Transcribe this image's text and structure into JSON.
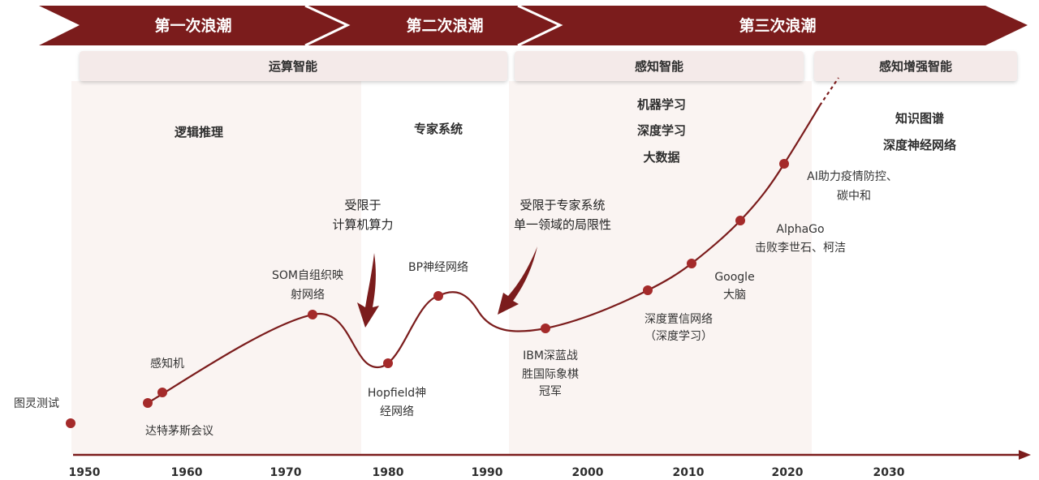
{
  "waves": [
    "第一次浪潮",
    "第二次浪潮",
    "第三次浪潮"
  ],
  "stages": [
    "运算智能",
    "感知智能",
    "感知增强智能"
  ],
  "themes": {
    "first": [
      "逻辑推理"
    ],
    "second": [
      "专家系统"
    ],
    "third": [
      "机器学习",
      "深度学习",
      "大数据"
    ],
    "fourth": [
      "知识图谱",
      "深度神经网络"
    ]
  },
  "constraints": [
    {
      "lines": [
        "受限于",
        "计算机算力"
      ]
    },
    {
      "lines": [
        "受限于专家系统",
        "单一领域的局限性"
      ]
    }
  ],
  "milestones": [
    {
      "lines": [
        "图灵测试"
      ]
    },
    {
      "lines": [
        "达特茅斯会议"
      ]
    },
    {
      "lines": [
        "感知机"
      ]
    },
    {
      "lines": [
        "SOM自组织映",
        "射网络"
      ]
    },
    {
      "lines": [
        "Hopfield神",
        "经网络"
      ]
    },
    {
      "lines": [
        "BP神经网络"
      ]
    },
    {
      "lines": [
        "IBM深蓝战",
        "胜国际象棋",
        "冠军"
      ]
    },
    {
      "lines": [
        "深度置信网络",
        "（深度学习）"
      ]
    },
    {
      "lines": [
        "Google",
        "大脑"
      ]
    },
    {
      "lines": [
        "AlphaGo",
        "击败李世石、柯洁"
      ]
    },
    {
      "lines": [
        "AI助力疫情防控、",
        "碳中和"
      ]
    }
  ],
  "axis": {
    "ticks": [
      "1950",
      "1960",
      "1970",
      "1980",
      "1990",
      "2000",
      "2010",
      "2020",
      "2030"
    ]
  },
  "colors": {
    "primary": "#7b1c1c",
    "dot": "#a42a2a",
    "stage_fill": "#f4eae9",
    "region_tint": "#faf4f2",
    "text": "#333333",
    "banner_text": "#ffffff"
  }
}
